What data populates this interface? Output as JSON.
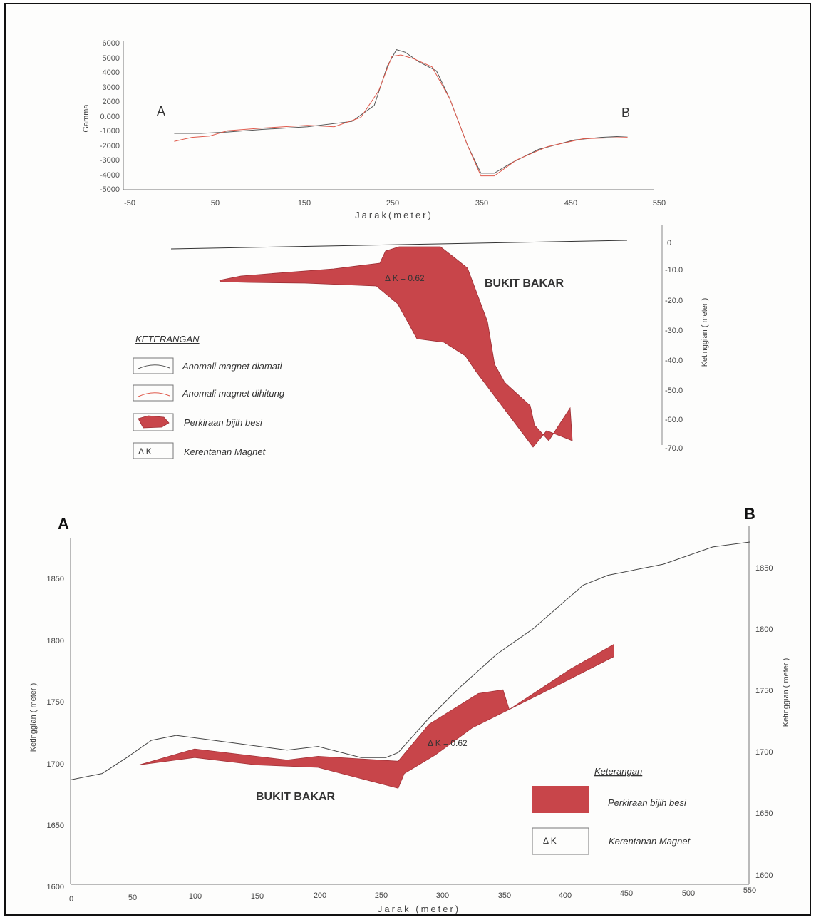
{
  "colors": {
    "ore": "#c8454a",
    "observed": "#555555",
    "computed": "#e05a4c",
    "axis": "#666666"
  },
  "chart_data": [
    {
      "type": "line",
      "title": "",
      "xlabel": "Jarak(meter)",
      "ylabel": "Gamma",
      "xlim": [
        -50,
        550
      ],
      "ylim": [
        -5000,
        6000
      ],
      "x_ticks": [
        "-50",
        "50",
        "150",
        "250",
        "350",
        "450",
        "550"
      ],
      "y_ticks": [
        "6000",
        "5000",
        "4000",
        "3000",
        "2000",
        "0.000",
        "-1000",
        "-2000",
        "-3000",
        "-4000",
        "-5000"
      ],
      "point_labels": {
        "start": "A",
        "end": "B"
      },
      "series": [
        {
          "name": "Anomali magnet diamati",
          "x": [
            0,
            30,
            60,
            100,
            150,
            200,
            225,
            240,
            250,
            260,
            275,
            295,
            310,
            330,
            345,
            360,
            380,
            410,
            450,
            480,
            510
          ],
          "y": [
            -600,
            -600,
            -500,
            -300,
            -100,
            300,
            1500,
            4500,
            5700,
            5500,
            4800,
            4100,
            2000,
            -1500,
            -3600,
            -3600,
            -2800,
            -1800,
            -1100,
            -900,
            -800
          ]
        },
        {
          "name": "Anomali magnet dihitung",
          "x": [
            0,
            20,
            40,
            60,
            100,
            150,
            180,
            210,
            230,
            245,
            255,
            270,
            290,
            310,
            330,
            345,
            360,
            385,
            420,
            460,
            510
          ],
          "y": [
            -1200,
            -900,
            -800,
            -400,
            -200,
            0,
            -100,
            600,
            2600,
            5200,
            5300,
            5000,
            4400,
            2000,
            -1500,
            -3800,
            -3800,
            -2600,
            -1600,
            -1000,
            -900
          ]
        }
      ],
      "section_depth_axis": {
        "ylabel": "Ketinggian ( meter )",
        "ticks": [
          ".0",
          "-10.0",
          "-20.0",
          "-30.0",
          "-40.0",
          "-50.0",
          "-60.0",
          "-70.0"
        ]
      },
      "annotations": [
        "Δ K = 0.62",
        "BUKIT BAKAR"
      ],
      "legend": {
        "title": "KETERANGAN",
        "items": [
          "Anomali magnet diamati",
          "Anomali magnet dihitung",
          "Perkiraan bijih besi",
          "Kerentanan Magnet"
        ],
        "k_symbol": "Δ K"
      }
    },
    {
      "type": "area",
      "title": "",
      "xlabel": "Jarak (meter)",
      "ylabel": "Ketinggian ( meter )",
      "xlim": [
        0,
        550
      ],
      "ylim": [
        1600,
        1900
      ],
      "x_ticks": [
        "0",
        "50",
        "100",
        "150",
        "200",
        "250",
        "300",
        "350",
        "400",
        "450",
        "500",
        "550"
      ],
      "y_ticks_left": [
        "1850",
        "1800",
        "1750",
        "1700",
        "1650",
        "1600"
      ],
      "y_ticks_right": [
        "1850",
        "1800",
        "1750",
        "1700",
        "1650",
        "1600"
      ],
      "point_labels": {
        "start": "A",
        "end": "B"
      },
      "topography": {
        "x": [
          0,
          25,
          45,
          65,
          85,
          130,
          175,
          200,
          235,
          255,
          265,
          290,
          315,
          345,
          375,
          415,
          435,
          480,
          520,
          550
        ],
        "y": [
          1685,
          1690,
          1703,
          1717,
          1721,
          1715,
          1709,
          1712,
          1703,
          1703,
          1707,
          1735,
          1760,
          1787,
          1808,
          1843,
          1851,
          1860,
          1874,
          1878
        ]
      },
      "ore_body_estimate": {
        "top": {
          "x": [
            55,
            100,
            175,
            200,
            265,
            290,
            330,
            350,
            355,
            405,
            440
          ],
          "y": [
            1697,
            1710,
            1701,
            1704,
            1700,
            1730,
            1755,
            1758,
            1742,
            1775,
            1795
          ]
        },
        "bottom": {
          "x": [
            440,
            395,
            325,
            295,
            270,
            265,
            200,
            150,
            100,
            55
          ],
          "y": [
            1785,
            1762,
            1727,
            1705,
            1690,
            1678,
            1695,
            1697,
            1703,
            1697
          ]
        }
      },
      "annotations": [
        "Δ K = 0.62",
        "BUKIT BAKAR"
      ],
      "legend": {
        "title": "Keterangan",
        "items": [
          "Perkiraan bijih besi",
          "Kerentanan Magnet"
        ],
        "k_symbol": "Δ K"
      }
    }
  ]
}
